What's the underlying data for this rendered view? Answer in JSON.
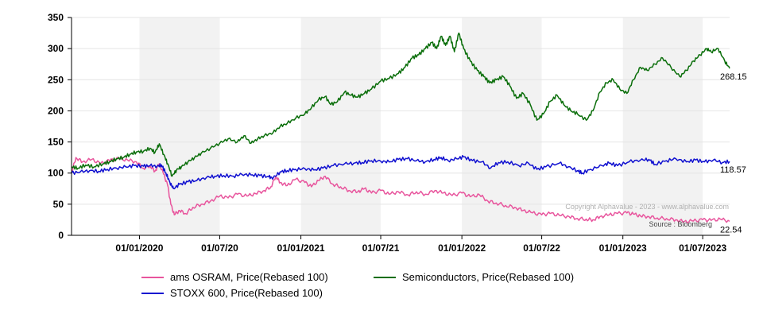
{
  "chart_data": {
    "type": "line",
    "x_range": [
      "2019-07-31",
      "2023-08-31"
    ],
    "ylim": [
      0,
      350
    ],
    "y_ticks": [
      "0",
      "50",
      "100",
      "150",
      "200",
      "250",
      "300",
      "350"
    ],
    "x_ticks": [
      {
        "date": "2020-01-01",
        "label": "01/01/2020"
      },
      {
        "date": "2020-07-01",
        "label": "01/07/20"
      },
      {
        "date": "2021-01-01",
        "label": "01/01/2021"
      },
      {
        "date": "2021-07-01",
        "label": "01/07/21"
      },
      {
        "date": "2022-01-01",
        "label": "01/01/2022"
      },
      {
        "date": "2022-07-01",
        "label": "01/07/22"
      },
      {
        "date": "2023-01-01",
        "label": "01/01/2023"
      },
      {
        "date": "2023-07-01",
        "label": "01/07/2023"
      }
    ],
    "shaded_bands": [
      [
        "2020-01-01",
        "2020-07-01"
      ],
      [
        "2021-01-01",
        "2021-07-01"
      ],
      [
        "2022-01-01",
        "2022-07-01"
      ],
      [
        "2023-01-01",
        "2023-07-01"
      ]
    ],
    "grid": true,
    "legend_position": "bottom",
    "annotations": {
      "copyright": "Copyright Alphavalue - 2023 - www.alphavalue.com",
      "source": "Source : Bloomberg"
    },
    "series": [
      {
        "name": "ams OSRAM, Price(Rebased 100)",
        "color": "#e8559d",
        "end_label": "22.54",
        "points": [
          [
            "2019-07-31",
            100
          ],
          [
            "2019-08-10",
            125
          ],
          [
            "2019-08-25",
            118
          ],
          [
            "2019-09-15",
            122
          ],
          [
            "2019-10-05",
            115
          ],
          [
            "2019-10-25",
            120
          ],
          [
            "2019-11-15",
            123
          ],
          [
            "2019-12-05",
            121
          ],
          [
            "2019-12-25",
            118
          ],
          [
            "2020-01-10",
            108
          ],
          [
            "2020-01-25",
            112
          ],
          [
            "2020-02-05",
            103
          ],
          [
            "2020-02-15",
            115
          ],
          [
            "2020-02-25",
            98
          ],
          [
            "2020-03-05",
            80
          ],
          [
            "2020-03-12",
            50
          ],
          [
            "2020-03-20",
            33
          ],
          [
            "2020-04-01",
            40
          ],
          [
            "2020-04-15",
            35
          ],
          [
            "2020-05-01",
            45
          ],
          [
            "2020-05-20",
            50
          ],
          [
            "2020-06-10",
            55
          ],
          [
            "2020-07-01",
            63
          ],
          [
            "2020-07-20",
            60
          ],
          [
            "2020-08-10",
            66
          ],
          [
            "2020-09-01",
            63
          ],
          [
            "2020-09-20",
            67
          ],
          [
            "2020-10-10",
            72
          ],
          [
            "2020-10-25",
            78
          ],
          [
            "2020-11-05",
            95
          ],
          [
            "2020-11-15",
            85
          ],
          [
            "2020-12-01",
            80
          ],
          [
            "2020-12-20",
            90
          ],
          [
            "2021-01-10",
            85
          ],
          [
            "2021-01-25",
            78
          ],
          [
            "2021-02-10",
            88
          ],
          [
            "2021-02-25",
            95
          ],
          [
            "2021-03-15",
            82
          ],
          [
            "2021-04-01",
            78
          ],
          [
            "2021-04-20",
            72
          ],
          [
            "2021-05-10",
            70
          ],
          [
            "2021-05-25",
            75
          ],
          [
            "2021-06-10",
            68
          ],
          [
            "2021-07-01",
            72
          ],
          [
            "2021-07-20",
            66
          ],
          [
            "2021-08-10",
            70
          ],
          [
            "2021-09-01",
            65
          ],
          [
            "2021-09-20",
            70
          ],
          [
            "2021-10-10",
            66
          ],
          [
            "2021-11-01",
            72
          ],
          [
            "2021-11-20",
            68
          ],
          [
            "2021-12-10",
            64
          ],
          [
            "2022-01-01",
            68
          ],
          [
            "2022-01-20",
            62
          ],
          [
            "2022-02-10",
            65
          ],
          [
            "2022-03-01",
            55
          ],
          [
            "2022-03-20",
            52
          ],
          [
            "2022-04-10",
            48
          ],
          [
            "2022-05-01",
            45
          ],
          [
            "2022-05-20",
            40
          ],
          [
            "2022-06-10",
            36
          ],
          [
            "2022-07-01",
            33
          ],
          [
            "2022-07-20",
            35
          ],
          [
            "2022-08-10",
            32
          ],
          [
            "2022-09-01",
            30
          ],
          [
            "2022-09-20",
            27
          ],
          [
            "2022-10-10",
            26
          ],
          [
            "2022-10-25",
            25
          ],
          [
            "2022-11-10",
            30
          ],
          [
            "2022-12-01",
            33
          ],
          [
            "2022-12-20",
            35
          ],
          [
            "2023-01-10",
            36
          ],
          [
            "2023-01-25",
            34
          ],
          [
            "2023-02-10",
            31
          ],
          [
            "2023-03-01",
            30
          ],
          [
            "2023-03-20",
            28
          ],
          [
            "2023-04-10",
            27
          ],
          [
            "2023-05-01",
            25
          ],
          [
            "2023-05-20",
            22
          ],
          [
            "2023-06-10",
            23
          ],
          [
            "2023-07-01",
            25
          ],
          [
            "2023-07-20",
            24
          ],
          [
            "2023-08-10",
            26
          ],
          [
            "2023-08-31",
            22.54
          ]
        ]
      },
      {
        "name": "Semiconductors, Price(Rebased 100)",
        "color": "#0a6e0a",
        "end_label": "268.15",
        "points": [
          [
            "2019-07-31",
            110
          ],
          [
            "2019-08-15",
            108
          ],
          [
            "2019-09-01",
            113
          ],
          [
            "2019-09-20",
            110
          ],
          [
            "2019-10-10",
            115
          ],
          [
            "2019-10-25",
            118
          ],
          [
            "2019-11-10",
            123
          ],
          [
            "2019-11-25",
            125
          ],
          [
            "2019-12-10",
            130
          ],
          [
            "2019-12-25",
            134
          ],
          [
            "2020-01-10",
            135
          ],
          [
            "2020-01-25",
            140
          ],
          [
            "2020-02-05",
            133
          ],
          [
            "2020-02-15",
            147
          ],
          [
            "2020-02-25",
            130
          ],
          [
            "2020-03-05",
            115
          ],
          [
            "2020-03-15",
            95
          ],
          [
            "2020-03-25",
            105
          ],
          [
            "2020-04-05",
            110
          ],
          [
            "2020-04-20",
            118
          ],
          [
            "2020-05-05",
            125
          ],
          [
            "2020-05-20",
            132
          ],
          [
            "2020-06-10",
            140
          ],
          [
            "2020-07-01",
            148
          ],
          [
            "2020-07-20",
            155
          ],
          [
            "2020-08-10",
            150
          ],
          [
            "2020-08-25",
            160
          ],
          [
            "2020-09-10",
            148
          ],
          [
            "2020-09-25",
            155
          ],
          [
            "2020-10-10",
            160
          ],
          [
            "2020-10-30",
            165
          ],
          [
            "2020-11-15",
            175
          ],
          [
            "2020-12-01",
            180
          ],
          [
            "2020-12-20",
            188
          ],
          [
            "2021-01-10",
            195
          ],
          [
            "2021-01-25",
            205
          ],
          [
            "2021-02-10",
            218
          ],
          [
            "2021-02-25",
            223
          ],
          [
            "2021-03-10",
            210
          ],
          [
            "2021-03-25",
            215
          ],
          [
            "2021-04-10",
            230
          ],
          [
            "2021-04-25",
            225
          ],
          [
            "2021-05-10",
            222
          ],
          [
            "2021-05-25",
            228
          ],
          [
            "2021-06-10",
            235
          ],
          [
            "2021-07-01",
            248
          ],
          [
            "2021-07-20",
            252
          ],
          [
            "2021-08-10",
            260
          ],
          [
            "2021-08-25",
            270
          ],
          [
            "2021-09-10",
            285
          ],
          [
            "2021-09-25",
            290
          ],
          [
            "2021-10-10",
            300
          ],
          [
            "2021-10-25",
            310
          ],
          [
            "2021-11-05",
            300
          ],
          [
            "2021-11-15",
            320
          ],
          [
            "2021-11-25",
            305
          ],
          [
            "2021-12-05",
            320
          ],
          [
            "2021-12-15",
            295
          ],
          [
            "2021-12-25",
            325
          ],
          [
            "2022-01-05",
            300
          ],
          [
            "2022-01-20",
            280
          ],
          [
            "2022-02-05",
            265
          ],
          [
            "2022-02-20",
            255
          ],
          [
            "2022-03-05",
            245
          ],
          [
            "2022-03-20",
            250
          ],
          [
            "2022-04-05",
            255
          ],
          [
            "2022-04-20",
            240
          ],
          [
            "2022-05-05",
            220
          ],
          [
            "2022-05-20",
            228
          ],
          [
            "2022-06-05",
            210
          ],
          [
            "2022-06-20",
            185
          ],
          [
            "2022-07-05",
            195
          ],
          [
            "2022-07-20",
            215
          ],
          [
            "2022-08-05",
            225
          ],
          [
            "2022-08-20",
            210
          ],
          [
            "2022-09-05",
            200
          ],
          [
            "2022-09-20",
            195
          ],
          [
            "2022-10-10",
            185
          ],
          [
            "2022-10-25",
            200
          ],
          [
            "2022-11-10",
            230
          ],
          [
            "2022-11-25",
            245
          ],
          [
            "2022-12-10",
            250
          ],
          [
            "2022-12-25",
            235
          ],
          [
            "2023-01-10",
            228
          ],
          [
            "2023-01-25",
            250
          ],
          [
            "2023-02-10",
            270
          ],
          [
            "2023-02-25",
            265
          ],
          [
            "2023-03-15",
            275
          ],
          [
            "2023-04-01",
            285
          ],
          [
            "2023-04-20",
            270
          ],
          [
            "2023-05-10",
            255
          ],
          [
            "2023-05-25",
            265
          ],
          [
            "2023-06-10",
            280
          ],
          [
            "2023-06-25",
            290
          ],
          [
            "2023-07-10",
            300
          ],
          [
            "2023-07-20",
            295
          ],
          [
            "2023-08-05",
            300
          ],
          [
            "2023-08-20",
            280
          ],
          [
            "2023-08-31",
            268.15
          ]
        ]
      },
      {
        "name": "STOXX 600, Price(Rebased 100)",
        "color": "#1010d0",
        "end_label": "118.57",
        "points": [
          [
            "2019-07-31",
            100
          ],
          [
            "2019-08-20",
            102
          ],
          [
            "2019-09-10",
            104
          ],
          [
            "2019-10-01",
            103
          ],
          [
            "2019-10-20",
            106
          ],
          [
            "2019-11-10",
            108
          ],
          [
            "2019-12-01",
            110
          ],
          [
            "2019-12-20",
            112
          ],
          [
            "2020-01-10",
            111
          ],
          [
            "2020-01-25",
            112
          ],
          [
            "2020-02-10",
            111
          ],
          [
            "2020-02-20",
            113
          ],
          [
            "2020-03-01",
            100
          ],
          [
            "2020-03-10",
            85
          ],
          [
            "2020-03-18",
            75
          ],
          [
            "2020-04-01",
            82
          ],
          [
            "2020-04-20",
            86
          ],
          [
            "2020-05-10",
            88
          ],
          [
            "2020-06-01",
            93
          ],
          [
            "2020-06-20",
            95
          ],
          [
            "2020-07-10",
            96
          ],
          [
            "2020-08-01",
            95
          ],
          [
            "2020-08-20",
            98
          ],
          [
            "2020-09-10",
            97
          ],
          [
            "2020-09-30",
            96
          ],
          [
            "2020-10-20",
            94
          ],
          [
            "2020-10-30",
            92
          ],
          [
            "2020-11-15",
            102
          ],
          [
            "2020-12-01",
            104
          ],
          [
            "2020-12-20",
            106
          ],
          [
            "2021-01-10",
            107
          ],
          [
            "2021-01-30",
            105
          ],
          [
            "2021-02-20",
            108
          ],
          [
            "2021-03-15",
            112
          ],
          [
            "2021-04-10",
            115
          ],
          [
            "2021-05-01",
            116
          ],
          [
            "2021-05-20",
            117
          ],
          [
            "2021-06-10",
            120
          ],
          [
            "2021-07-01",
            119
          ],
          [
            "2021-07-20",
            118
          ],
          [
            "2021-08-10",
            122
          ],
          [
            "2021-08-30",
            123
          ],
          [
            "2021-09-20",
            120
          ],
          [
            "2021-10-10",
            118
          ],
          [
            "2021-10-30",
            122
          ],
          [
            "2021-11-15",
            125
          ],
          [
            "2021-12-01",
            120
          ],
          [
            "2021-12-20",
            123
          ],
          [
            "2022-01-05",
            126
          ],
          [
            "2022-01-25",
            120
          ],
          [
            "2022-02-15",
            118
          ],
          [
            "2022-03-07",
            108
          ],
          [
            "2022-03-25",
            117
          ],
          [
            "2022-04-15",
            118
          ],
          [
            "2022-05-10",
            112
          ],
          [
            "2022-06-01",
            116
          ],
          [
            "2022-06-20",
            106
          ],
          [
            "2022-07-10",
            110
          ],
          [
            "2022-08-10",
            116
          ],
          [
            "2022-08-30",
            110
          ],
          [
            "2022-09-20",
            104
          ],
          [
            "2022-10-01",
            100
          ],
          [
            "2022-10-20",
            106
          ],
          [
            "2022-11-15",
            112
          ],
          [
            "2022-12-01",
            116
          ],
          [
            "2022-12-20",
            112
          ],
          [
            "2023-01-15",
            118
          ],
          [
            "2023-02-10",
            121
          ],
          [
            "2023-03-01",
            122
          ],
          [
            "2023-03-15",
            114
          ],
          [
            "2023-04-10",
            120
          ],
          [
            "2023-05-01",
            123
          ],
          [
            "2023-05-25",
            118
          ],
          [
            "2023-06-15",
            121
          ],
          [
            "2023-07-05",
            118
          ],
          [
            "2023-07-25",
            121
          ],
          [
            "2023-08-15",
            117
          ],
          [
            "2023-08-31",
            118.57
          ]
        ]
      }
    ]
  }
}
